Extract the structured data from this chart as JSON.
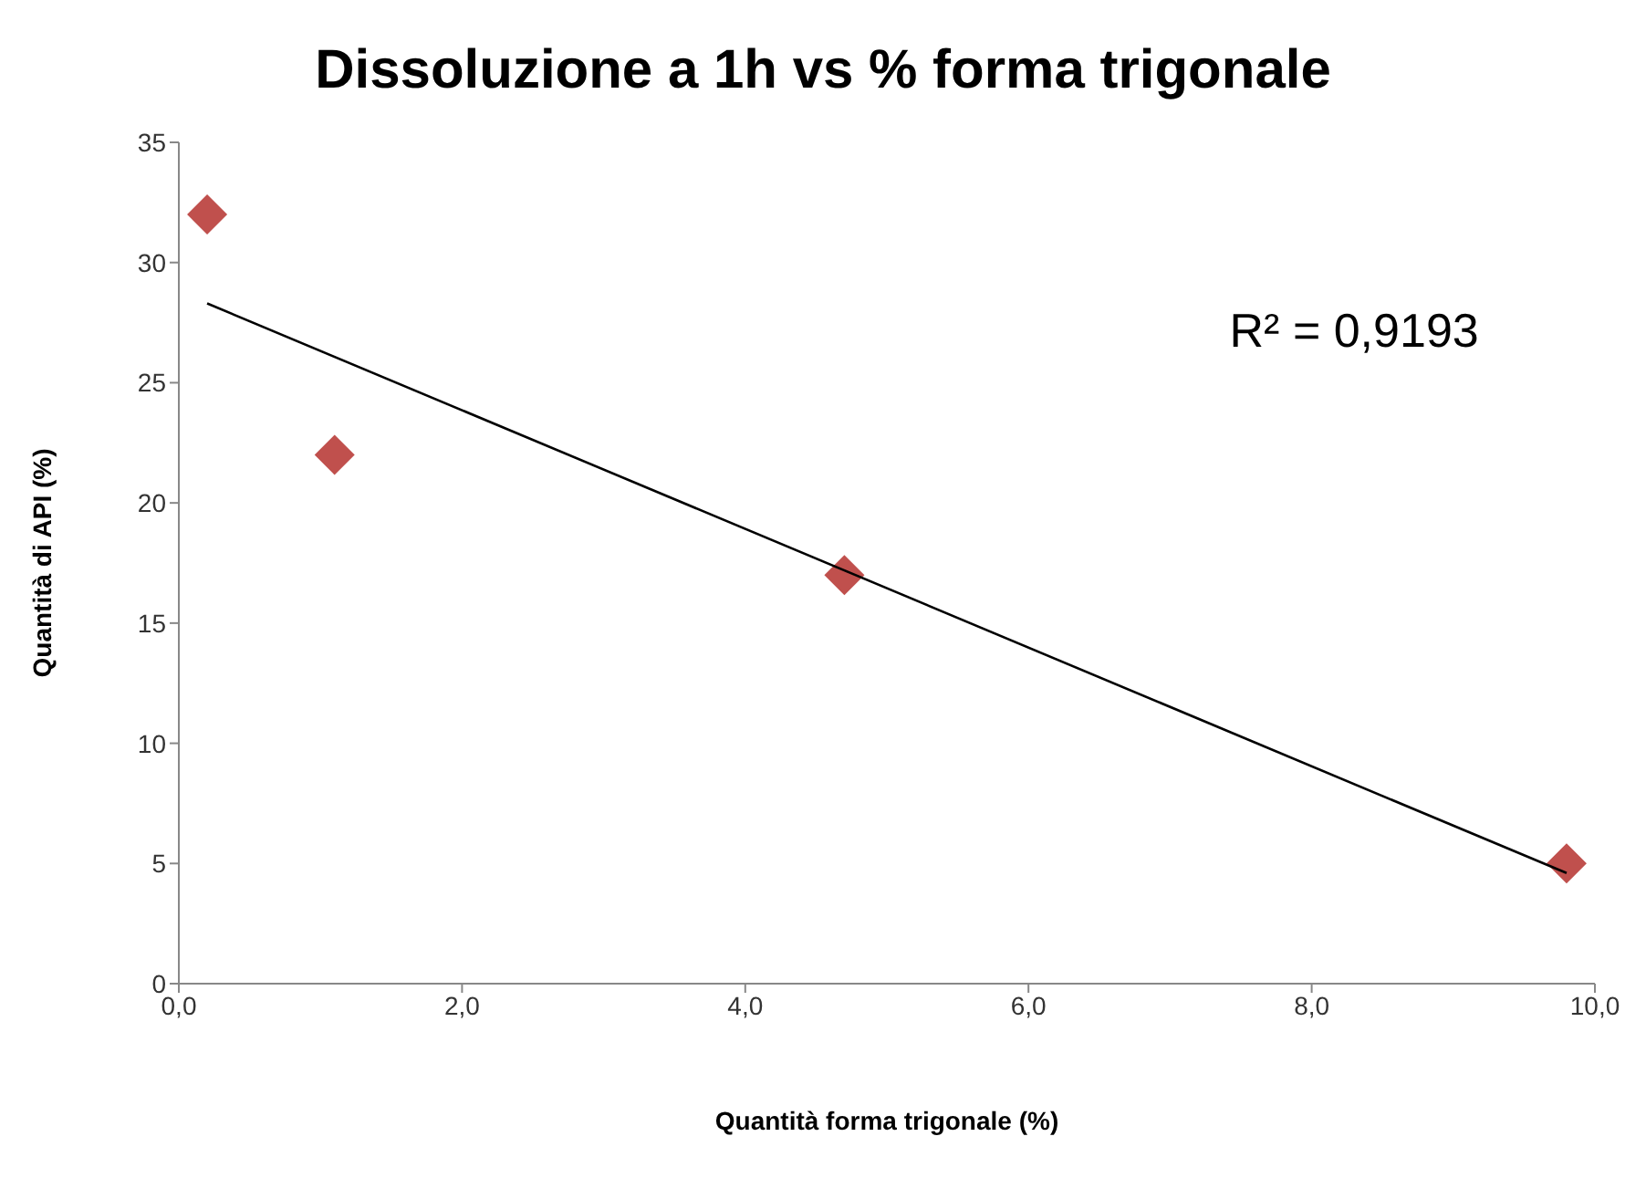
{
  "chart_data": {
    "type": "scatter",
    "title": "Dissoluzione a 1h vs % forma trigonale",
    "xlabel": "Quantità forma trigonale (%)",
    "ylabel": "Quantità di API (%)",
    "series": [
      {
        "color": "#c0504d",
        "marker": "diamond",
        "x": [
          0.2,
          1.1,
          4.7,
          9.8
        ],
        "values": [
          32,
          22,
          17,
          5
        ]
      },
      {
        "type": "line",
        "color": "#000000",
        "marker": "none",
        "x": [
          0.2,
          9.8
        ],
        "values": [
          28.3,
          4.6
        ]
      }
    ],
    "annotations": [
      "R² = 0,9193"
    ],
    "xlim": [
      0,
      10
    ],
    "xticks": [
      {
        "value": 0,
        "label": "0,0"
      },
      {
        "value": 2,
        "label": "2,0"
      },
      {
        "value": 4,
        "label": "4,0"
      },
      {
        "value": 6,
        "label": "6,0"
      },
      {
        "value": 8,
        "label": "8,0"
      },
      {
        "value": 10,
        "label": "10,0"
      }
    ],
    "ylim": [
      0,
      35
    ],
    "yticks": [
      0,
      5,
      10,
      15,
      20,
      25,
      30,
      35
    ],
    "grid": false,
    "legend": false
  }
}
